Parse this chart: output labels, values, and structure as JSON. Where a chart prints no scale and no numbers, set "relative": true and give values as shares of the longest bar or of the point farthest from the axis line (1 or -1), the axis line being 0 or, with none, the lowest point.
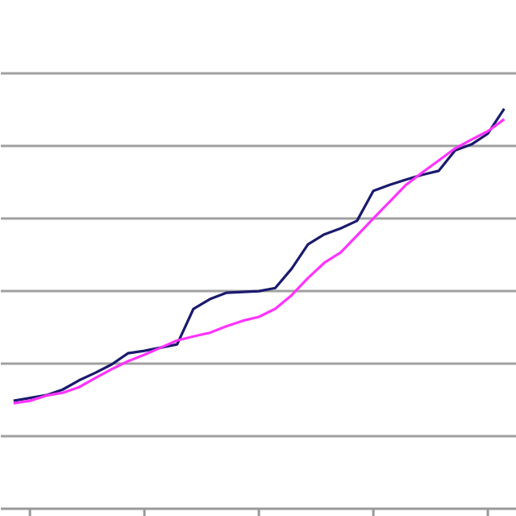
{
  "chart_data": {
    "type": "line",
    "relative": true,
    "grid": "y",
    "line_style": "solid",
    "categories": [
      null,
      null,
      null,
      null,
      null,
      null,
      null,
      null,
      null,
      null,
      null,
      null,
      null,
      null,
      null,
      null,
      null,
      null,
      null,
      null,
      null,
      null,
      null,
      null,
      null,
      null,
      null,
      null,
      null,
      null,
      null
    ],
    "series": [
      {
        "color": "#1a1a6e",
        "values": [
          0.27,
          0.277,
          0.284,
          0.298,
          0.321,
          0.34,
          0.361,
          0.389,
          0.395,
          0.403,
          0.411,
          0.5,
          0.524,
          0.54,
          0.542,
          0.544,
          0.552,
          0.6,
          0.661,
          0.686,
          0.701,
          0.72,
          0.795,
          0.81,
          0.823,
          0.835,
          0.845,
          0.896,
          0.911,
          0.938,
          1.0
        ]
      },
      {
        "color": "#ff33ff",
        "values": [
          0.264,
          0.27,
          0.283,
          0.29,
          0.304,
          0.327,
          0.349,
          0.369,
          0.385,
          0.403,
          0.421,
          0.431,
          0.44,
          0.456,
          0.47,
          0.48,
          0.5,
          0.534,
          0.577,
          0.615,
          0.641,
          0.683,
          0.726,
          0.768,
          0.81,
          0.841,
          0.871,
          0.901,
          0.923,
          0.944,
          0.974
        ]
      }
    ]
  }
}
